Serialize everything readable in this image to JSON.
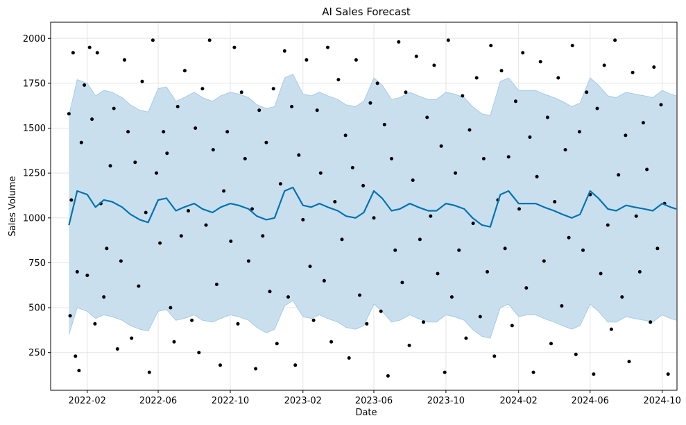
{
  "chart_data": {
    "type": "line",
    "title": "AI Sales Forecast",
    "xlabel": "Date",
    "ylabel": "Sales Volume",
    "x_range": [
      "2021-12-01",
      "2024-10-26"
    ],
    "ylim": [
      40,
      2090
    ],
    "grid": true,
    "x_ticks": [
      "2022-02",
      "2022-06",
      "2022-10",
      "2023-02",
      "2023-06",
      "2023-10",
      "2024-02",
      "2024-06",
      "2024-10"
    ],
    "y_ticks": [
      250,
      500,
      750,
      1000,
      1250,
      1500,
      1750,
      2000
    ],
    "colors": {
      "forecast_line": "#0072B2",
      "interval_fill": "#C9DFEE",
      "interval_edge": "#A7CCE4",
      "observations": "#000000",
      "grid": "#E5E5E5"
    },
    "series": [
      {
        "kind": "forecast",
        "x": [
          "2022-01-01",
          "2022-01-15",
          "2022-02-01",
          "2022-02-15",
          "2022-03-01",
          "2022-03-15",
          "2022-04-01",
          "2022-04-15",
          "2022-05-01",
          "2022-05-15",
          "2022-06-01",
          "2022-06-15",
          "2022-07-01",
          "2022-07-15",
          "2022-08-01",
          "2022-08-15",
          "2022-09-01",
          "2022-09-15",
          "2022-10-01",
          "2022-10-15",
          "2022-11-01",
          "2022-11-15",
          "2022-12-01",
          "2022-12-15",
          "2023-01-01",
          "2023-01-15",
          "2023-02-01",
          "2023-02-15",
          "2023-03-01",
          "2023-03-15",
          "2023-04-01",
          "2023-04-15",
          "2023-05-01",
          "2023-05-15",
          "2023-06-01",
          "2023-06-15",
          "2023-07-01",
          "2023-07-15",
          "2023-08-01",
          "2023-08-15",
          "2023-09-01",
          "2023-09-15",
          "2023-10-01",
          "2023-10-15",
          "2023-11-01",
          "2023-11-15",
          "2023-12-01",
          "2023-12-15",
          "2024-01-01",
          "2024-01-15",
          "2024-02-01",
          "2024-02-15",
          "2024-03-01",
          "2024-03-15",
          "2024-04-01",
          "2024-04-15",
          "2024-05-01",
          "2024-05-15",
          "2024-06-01",
          "2024-06-15",
          "2024-07-01",
          "2024-07-15",
          "2024-08-01",
          "2024-08-15",
          "2024-09-01",
          "2024-09-15",
          "2024-10-01",
          "2024-10-15",
          "2024-10-25"
        ],
        "yhat": [
          960,
          1150,
          1130,
          1060,
          1100,
          1090,
          1060,
          1020,
          990,
          975,
          1100,
          1110,
          1040,
          1060,
          1080,
          1050,
          1030,
          1060,
          1080,
          1070,
          1050,
          1010,
          990,
          1000,
          1150,
          1170,
          1070,
          1060,
          1080,
          1060,
          1040,
          1010,
          1000,
          1030,
          1150,
          1110,
          1040,
          1050,
          1080,
          1060,
          1040,
          1040,
          1080,
          1070,
          1050,
          1000,
          960,
          950,
          1130,
          1150,
          1080,
          1080,
          1080,
          1060,
          1040,
          1020,
          1000,
          1020,
          1150,
          1110,
          1050,
          1040,
          1070,
          1060,
          1050,
          1040,
          1080,
          1060,
          1050
        ],
        "yhat_lower": [
          350,
          500,
          480,
          440,
          460,
          450,
          430,
          400,
          380,
          370,
          480,
          490,
          430,
          440,
          460,
          430,
          420,
          440,
          460,
          450,
          430,
          390,
          360,
          380,
          510,
          540,
          450,
          440,
          460,
          440,
          420,
          390,
          380,
          400,
          520,
          480,
          420,
          430,
          460,
          440,
          420,
          420,
          460,
          450,
          430,
          380,
          340,
          330,
          500,
          520,
          450,
          460,
          460,
          440,
          420,
          400,
          380,
          400,
          520,
          480,
          420,
          420,
          450,
          440,
          430,
          420,
          460,
          440,
          430
        ],
        "yhat_upper": [
          1570,
          1770,
          1750,
          1680,
          1710,
          1700,
          1670,
          1630,
          1600,
          1590,
          1720,
          1730,
          1650,
          1670,
          1700,
          1670,
          1650,
          1680,
          1700,
          1690,
          1670,
          1630,
          1610,
          1620,
          1780,
          1800,
          1690,
          1680,
          1700,
          1680,
          1660,
          1630,
          1620,
          1650,
          1780,
          1740,
          1660,
          1670,
          1700,
          1680,
          1660,
          1660,
          1700,
          1690,
          1670,
          1620,
          1580,
          1570,
          1760,
          1780,
          1710,
          1710,
          1710,
          1690,
          1670,
          1650,
          1620,
          1640,
          1780,
          1740,
          1680,
          1670,
          1700,
          1690,
          1680,
          1670,
          1710,
          1690,
          1680
        ]
      },
      {
        "kind": "observed",
        "points": [
          [
            "2022-01-01",
            1580
          ],
          [
            "2022-01-03",
            455
          ],
          [
            "2022-01-05",
            1100
          ],
          [
            "2022-01-08",
            1920
          ],
          [
            "2022-01-12",
            230
          ],
          [
            "2022-01-15",
            700
          ],
          [
            "2022-01-18",
            150
          ],
          [
            "2022-01-22",
            1420
          ],
          [
            "2022-01-27",
            1740
          ],
          [
            "2022-02-01",
            680
          ],
          [
            "2022-02-05",
            1950
          ],
          [
            "2022-02-09",
            1550
          ],
          [
            "2022-02-14",
            410
          ],
          [
            "2022-02-18",
            1920
          ],
          [
            "2022-02-24",
            1080
          ],
          [
            "2022-03-01",
            560
          ],
          [
            "2022-03-06",
            830
          ],
          [
            "2022-03-12",
            1290
          ],
          [
            "2022-03-18",
            1610
          ],
          [
            "2022-03-24",
            270
          ],
          [
            "2022-03-30",
            760
          ],
          [
            "2022-04-05",
            1880
          ],
          [
            "2022-04-11",
            1480
          ],
          [
            "2022-04-17",
            330
          ],
          [
            "2022-04-23",
            1310
          ],
          [
            "2022-04-29",
            620
          ],
          [
            "2022-05-05",
            1760
          ],
          [
            "2022-05-11",
            1030
          ],
          [
            "2022-05-17",
            140
          ],
          [
            "2022-05-23",
            1990
          ],
          [
            "2022-05-29",
            1250
          ],
          [
            "2022-06-04",
            860
          ],
          [
            "2022-06-10",
            1480
          ],
          [
            "2022-06-16",
            1360
          ],
          [
            "2022-06-22",
            500
          ],
          [
            "2022-06-28",
            310
          ],
          [
            "2022-07-04",
            1620
          ],
          [
            "2022-07-10",
            900
          ],
          [
            "2022-07-16",
            1820
          ],
          [
            "2022-07-22",
            1040
          ],
          [
            "2022-07-28",
            430
          ],
          [
            "2022-08-03",
            1500
          ],
          [
            "2022-08-09",
            250
          ],
          [
            "2022-08-15",
            1720
          ],
          [
            "2022-08-21",
            960
          ],
          [
            "2022-08-27",
            1990
          ],
          [
            "2022-09-02",
            1380
          ],
          [
            "2022-09-08",
            630
          ],
          [
            "2022-09-14",
            180
          ],
          [
            "2022-09-20",
            1150
          ],
          [
            "2022-09-26",
            1480
          ],
          [
            "2022-10-02",
            870
          ],
          [
            "2022-10-08",
            1950
          ],
          [
            "2022-10-14",
            410
          ],
          [
            "2022-10-20",
            1700
          ],
          [
            "2022-10-26",
            1330
          ],
          [
            "2022-11-01",
            760
          ],
          [
            "2022-11-07",
            1050
          ],
          [
            "2022-11-13",
            160
          ],
          [
            "2022-11-19",
            1600
          ],
          [
            "2022-11-25",
            900
          ],
          [
            "2022-12-01",
            1420
          ],
          [
            "2022-12-07",
            590
          ],
          [
            "2022-12-13",
            1720
          ],
          [
            "2022-12-19",
            300
          ],
          [
            "2022-12-25",
            1190
          ],
          [
            "2023-01-01",
            1930
          ],
          [
            "2023-01-07",
            560
          ],
          [
            "2023-01-13",
            1620
          ],
          [
            "2023-01-19",
            180
          ],
          [
            "2023-01-25",
            1350
          ],
          [
            "2023-02-01",
            990
          ],
          [
            "2023-02-07",
            1880
          ],
          [
            "2023-02-13",
            730
          ],
          [
            "2023-02-19",
            430
          ],
          [
            "2023-02-25",
            1600
          ],
          [
            "2023-03-03",
            1250
          ],
          [
            "2023-03-09",
            650
          ],
          [
            "2023-03-15",
            1950
          ],
          [
            "2023-03-21",
            310
          ],
          [
            "2023-03-27",
            1090
          ],
          [
            "2023-04-02",
            1770
          ],
          [
            "2023-04-08",
            880
          ],
          [
            "2023-04-14",
            1460
          ],
          [
            "2023-04-20",
            220
          ],
          [
            "2023-04-26",
            1280
          ],
          [
            "2023-05-02",
            1880
          ],
          [
            "2023-05-08",
            570
          ],
          [
            "2023-05-14",
            1180
          ],
          [
            "2023-05-20",
            410
          ],
          [
            "2023-05-26",
            1640
          ],
          [
            "2023-06-01",
            1000
          ],
          [
            "2023-06-07",
            1750
          ],
          [
            "2023-06-13",
            480
          ],
          [
            "2023-06-19",
            1520
          ],
          [
            "2023-06-25",
            120
          ],
          [
            "2023-07-01",
            1330
          ],
          [
            "2023-07-07",
            820
          ],
          [
            "2023-07-13",
            1980
          ],
          [
            "2023-07-19",
            640
          ],
          [
            "2023-07-25",
            1700
          ],
          [
            "2023-07-31",
            290
          ],
          [
            "2023-08-06",
            1210
          ],
          [
            "2023-08-12",
            1900
          ],
          [
            "2023-08-18",
            880
          ],
          [
            "2023-08-24",
            420
          ],
          [
            "2023-08-30",
            1560
          ],
          [
            "2023-09-05",
            1010
          ],
          [
            "2023-09-11",
            1850
          ],
          [
            "2023-09-17",
            690
          ],
          [
            "2023-09-23",
            1400
          ],
          [
            "2023-09-29",
            140
          ],
          [
            "2023-10-05",
            1990
          ],
          [
            "2023-10-11",
            560
          ],
          [
            "2023-10-17",
            1250
          ],
          [
            "2023-10-23",
            820
          ],
          [
            "2023-10-29",
            1680
          ],
          [
            "2023-11-04",
            330
          ],
          [
            "2023-11-10",
            1490
          ],
          [
            "2023-11-16",
            970
          ],
          [
            "2023-11-22",
            1780
          ],
          [
            "2023-11-28",
            450
          ],
          [
            "2023-12-04",
            1330
          ],
          [
            "2023-12-10",
            700
          ],
          [
            "2023-12-16",
            1960
          ],
          [
            "2023-12-22",
            230
          ],
          [
            "2023-12-28",
            1100
          ],
          [
            "2024-01-03",
            1820
          ],
          [
            "2024-01-09",
            830
          ],
          [
            "2024-01-15",
            1340
          ],
          [
            "2024-01-21",
            400
          ],
          [
            "2024-01-27",
            1650
          ],
          [
            "2024-02-02",
            1050
          ],
          [
            "2024-02-08",
            1920
          ],
          [
            "2024-02-14",
            610
          ],
          [
            "2024-02-20",
            1450
          ],
          [
            "2024-02-26",
            140
          ],
          [
            "2024-03-03",
            1230
          ],
          [
            "2024-03-09",
            1870
          ],
          [
            "2024-03-15",
            760
          ],
          [
            "2024-03-21",
            1560
          ],
          [
            "2024-03-27",
            300
          ],
          [
            "2024-04-02",
            1090
          ],
          [
            "2024-04-08",
            1780
          ],
          [
            "2024-04-14",
            510
          ],
          [
            "2024-04-20",
            1380
          ],
          [
            "2024-04-26",
            890
          ],
          [
            "2024-05-02",
            1960
          ],
          [
            "2024-05-08",
            240
          ],
          [
            "2024-05-14",
            1480
          ],
          [
            "2024-05-20",
            820
          ],
          [
            "2024-05-26",
            1700
          ],
          [
            "2024-06-01",
            1130
          ],
          [
            "2024-06-07",
            130
          ],
          [
            "2024-06-13",
            1610
          ],
          [
            "2024-06-19",
            690
          ],
          [
            "2024-06-25",
            1850
          ],
          [
            "2024-07-01",
            960
          ],
          [
            "2024-07-07",
            380
          ],
          [
            "2024-07-13",
            1990
          ],
          [
            "2024-07-19",
            1240
          ],
          [
            "2024-07-25",
            560
          ],
          [
            "2024-07-31",
            1460
          ],
          [
            "2024-08-06",
            200
          ],
          [
            "2024-08-12",
            1810
          ],
          [
            "2024-08-18",
            1010
          ],
          [
            "2024-08-24",
            700
          ],
          [
            "2024-08-30",
            1530
          ],
          [
            "2024-09-05",
            1270
          ],
          [
            "2024-09-11",
            420
          ],
          [
            "2024-09-17",
            1840
          ],
          [
            "2024-09-23",
            830
          ],
          [
            "2024-09-29",
            1630
          ],
          [
            "2024-10-05",
            1080
          ],
          [
            "2024-10-11",
            130
          ]
        ]
      }
    ]
  }
}
